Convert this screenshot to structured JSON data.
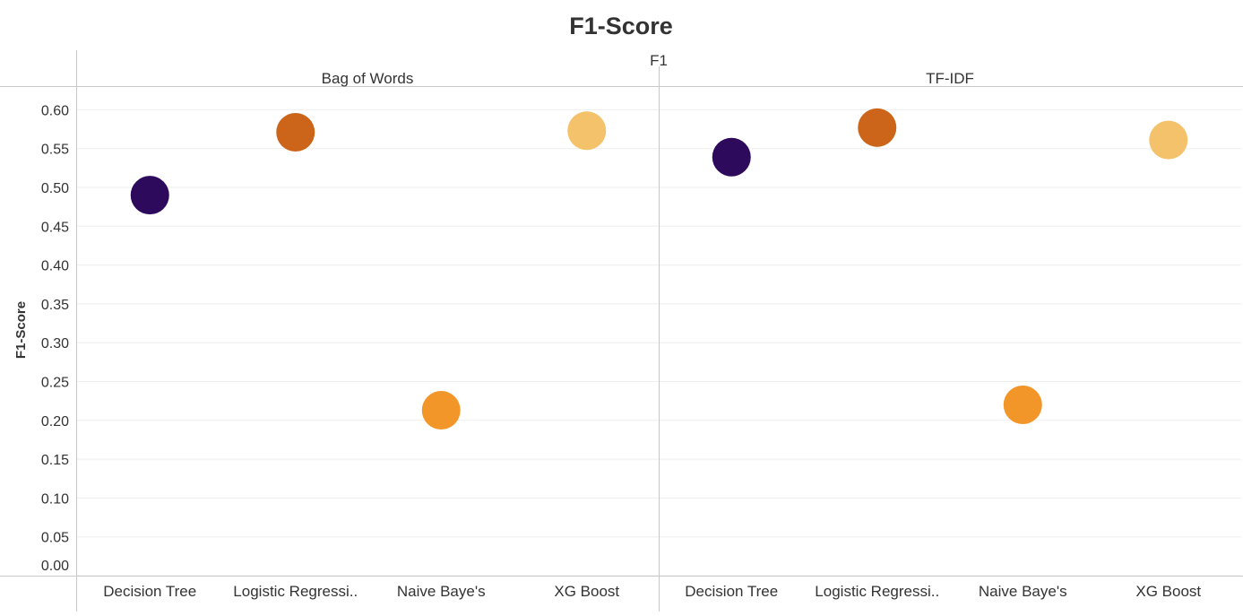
{
  "chart_data": {
    "type": "scatter",
    "title": "F1-Score",
    "column_header": "F1",
    "ylabel": "F1-Score",
    "ylim": [
      0,
      0.625
    ],
    "yticks": [
      "0.60",
      "0.55",
      "0.50",
      "0.45",
      "0.40",
      "0.35",
      "0.30",
      "0.25",
      "0.20",
      "0.15",
      "0.10",
      "0.05",
      "0.00"
    ],
    "grid": true,
    "legend": "none",
    "categories": [
      "Decision Tree",
      "Logistic Regressi..",
      "Naive Baye's",
      "XG Boost"
    ],
    "category_colors": [
      "#2d0a5c",
      "#cc6519",
      "#f29629",
      "#f4c26a"
    ],
    "panels": [
      {
        "name": "Bag of Words",
        "values": [
          0.49,
          0.571,
          0.213,
          0.573
        ]
      },
      {
        "name": "TF-IDF",
        "values": [
          0.539,
          0.577,
          0.22,
          0.561
        ]
      }
    ]
  }
}
